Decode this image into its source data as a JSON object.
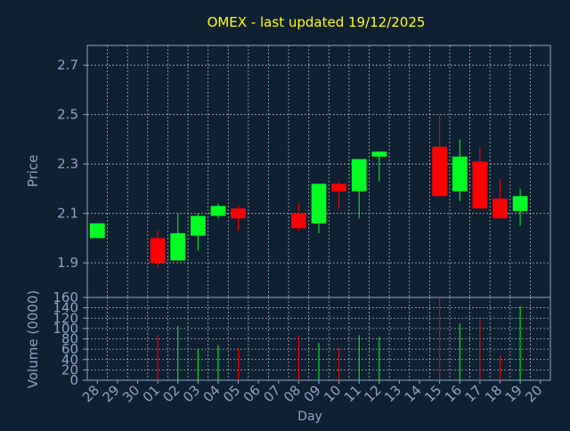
{
  "title": "OMEX - last updated 19/12/2025",
  "colors": {
    "background": "#0f2033",
    "plot_border": "#8aa4c4",
    "grid": "#c8d2de",
    "title": "#ffff00",
    "axis_text": "#8aa4c4",
    "up": "#00ff22",
    "down": "#ff0000"
  },
  "chart_data": [
    {
      "type": "candlestick",
      "title": "OMEX - last updated 19/12/2025",
      "xlabel": "",
      "ylabel": "Price",
      "ylim": [
        1.76,
        2.78
      ],
      "yticks": [
        1.9,
        2.1,
        2.3,
        2.5,
        2.7
      ],
      "ytick_labels": [
        "1.9",
        "2.1",
        "2.3",
        "2.5",
        "2.7"
      ],
      "grid": true,
      "categories": [
        "28",
        "29",
        "30",
        "01",
        "02",
        "03",
        "04",
        "05",
        "06",
        "07",
        "08",
        "09",
        "10",
        "11",
        "12",
        "13",
        "14",
        "15",
        "16",
        "17",
        "18",
        "19",
        "20"
      ],
      "candles": [
        {
          "x": "28",
          "open": 2.0,
          "high": 2.06,
          "low": 2.0,
          "close": 2.06
        },
        {
          "x": "01",
          "open": 2.0,
          "high": 2.03,
          "low": 1.88,
          "close": 1.9
        },
        {
          "x": "02",
          "open": 1.91,
          "high": 2.1,
          "low": 1.91,
          "close": 2.02
        },
        {
          "x": "03",
          "open": 2.01,
          "high": 2.1,
          "low": 1.95,
          "close": 2.09
        },
        {
          "x": "04",
          "open": 2.09,
          "high": 2.14,
          "low": 2.08,
          "close": 2.13
        },
        {
          "x": "05",
          "open": 2.12,
          "high": 2.13,
          "low": 2.03,
          "close": 2.08
        },
        {
          "x": "08",
          "open": 2.1,
          "high": 2.14,
          "low": 2.03,
          "close": 2.04
        },
        {
          "x": "09",
          "open": 2.06,
          "high": 2.22,
          "low": 2.02,
          "close": 2.22
        },
        {
          "x": "10",
          "open": 2.22,
          "high": 2.23,
          "low": 2.12,
          "close": 2.19
        },
        {
          "x": "11",
          "open": 2.19,
          "high": 2.32,
          "low": 2.08,
          "close": 2.32
        },
        {
          "x": "12",
          "open": 2.33,
          "high": 2.35,
          "low": 2.23,
          "close": 2.35
        },
        {
          "x": "15",
          "open": 2.37,
          "high": 2.5,
          "low": 2.17,
          "close": 2.17
        },
        {
          "x": "16",
          "open": 2.19,
          "high": 2.4,
          "low": 2.15,
          "close": 2.33
        },
        {
          "x": "17",
          "open": 2.31,
          "high": 2.37,
          "low": 2.12,
          "close": 2.12
        },
        {
          "x": "18",
          "open": 2.16,
          "high": 2.24,
          "low": 2.08,
          "close": 2.08
        },
        {
          "x": "19",
          "open": 2.11,
          "high": 2.2,
          "low": 2.05,
          "close": 2.17
        }
      ]
    },
    {
      "type": "bar",
      "title": "",
      "xlabel": "Day",
      "ylabel": "Volume (0000)",
      "ylim": [
        0,
        160
      ],
      "yticks": [
        0,
        20,
        40,
        60,
        80,
        100,
        120,
        140,
        160
      ],
      "ytick_labels": [
        "0",
        "20",
        "40",
        "60",
        "80",
        "100",
        "120",
        "140",
        "160"
      ],
      "grid": true,
      "categories": [
        "28",
        "29",
        "30",
        "01",
        "02",
        "03",
        "04",
        "05",
        "06",
        "07",
        "08",
        "09",
        "10",
        "11",
        "12",
        "13",
        "14",
        "15",
        "16",
        "17",
        "18",
        "19",
        "20"
      ],
      "xtick_labels": [
        "28",
        "29",
        "30",
        "01",
        "02",
        "03",
        "04",
        "05",
        "06",
        "07",
        "08",
        "09",
        "10",
        "11",
        "12",
        "13",
        "14",
        "15",
        "16",
        "17",
        "18",
        "19",
        "20"
      ],
      "bars": [
        {
          "x": "28",
          "value": 0,
          "color": "up"
        },
        {
          "x": "01",
          "value": 87,
          "color": "down"
        },
        {
          "x": "02",
          "value": 105,
          "color": "up"
        },
        {
          "x": "03",
          "value": 60,
          "color": "up"
        },
        {
          "x": "04",
          "value": 68,
          "color": "up"
        },
        {
          "x": "05",
          "value": 63,
          "color": "down"
        },
        {
          "x": "08",
          "value": 87,
          "color": "down"
        },
        {
          "x": "09",
          "value": 72,
          "color": "up"
        },
        {
          "x": "10",
          "value": 63,
          "color": "down"
        },
        {
          "x": "11",
          "value": 87,
          "color": "up"
        },
        {
          "x": "12",
          "value": 84,
          "color": "up"
        },
        {
          "x": "15",
          "value": 160,
          "color": "down"
        },
        {
          "x": "16",
          "value": 110,
          "color": "up"
        },
        {
          "x": "17",
          "value": 118,
          "color": "down"
        },
        {
          "x": "18",
          "value": 48,
          "color": "down"
        },
        {
          "x": "19",
          "value": 143,
          "color": "up"
        }
      ]
    }
  ]
}
